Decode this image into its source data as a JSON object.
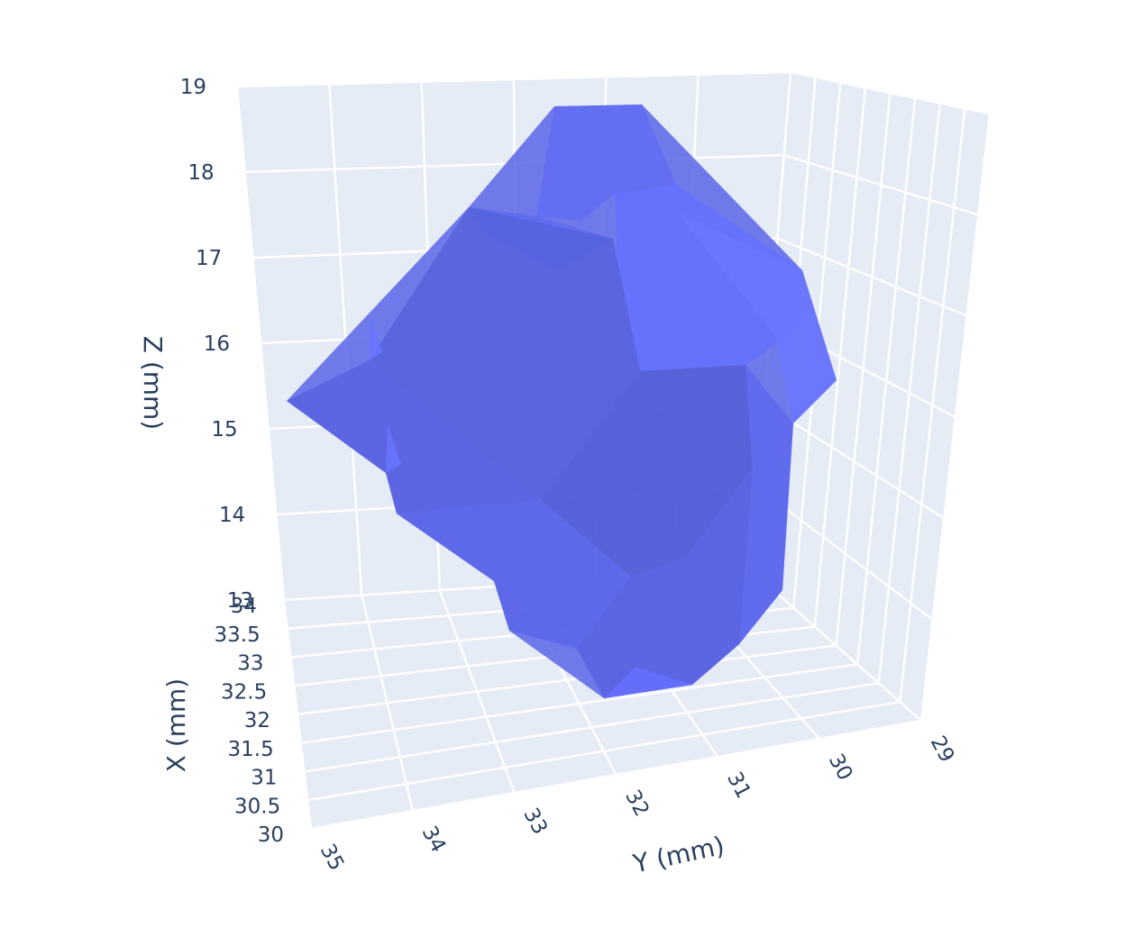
{
  "chart_data": {
    "type": "mesh3d",
    "title": "",
    "scene": {
      "xaxis": {
        "title": "X (mm)",
        "tick_labels": [
          "30",
          "30.5",
          "31",
          "31.5",
          "32",
          "32.5",
          "33",
          "33.5",
          "34"
        ],
        "range": [
          30,
          34
        ]
      },
      "yaxis": {
        "title": "Y (mm)",
        "tick_labels": [
          "35",
          "34",
          "33",
          "32",
          "31",
          "30",
          "29"
        ],
        "range": [
          29,
          35
        ]
      },
      "zaxis": {
        "title": "Z (mm)",
        "tick_labels": [
          "13",
          "14",
          "15",
          "16",
          "17",
          "18",
          "19"
        ],
        "range": [
          13,
          19
        ]
      },
      "background_color": "#e5ecf6",
      "grid": true
    },
    "mesh": {
      "color": "#636efa",
      "opacity": 0.85,
      "approx_extent": {
        "y": [
          29.8,
          34.6
        ],
        "z": [
          13.3,
          19.0
        ]
      }
    }
  }
}
